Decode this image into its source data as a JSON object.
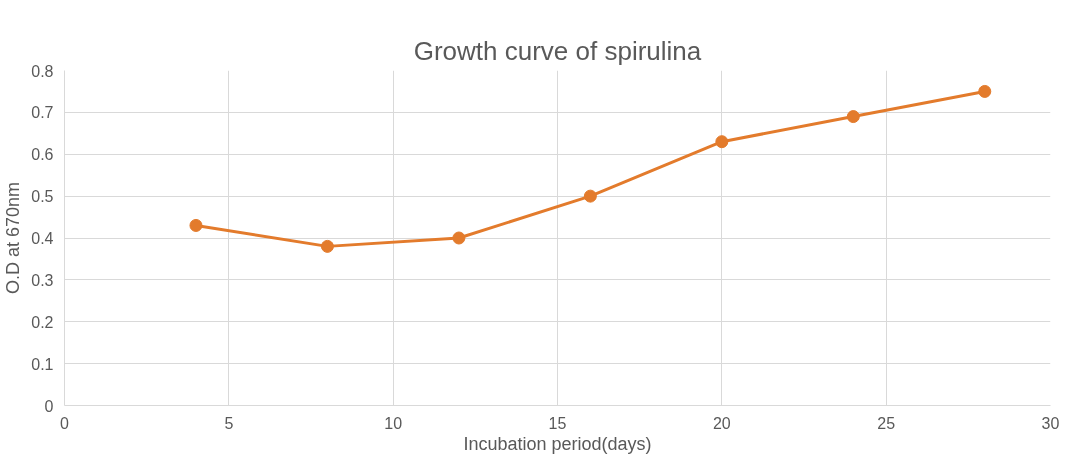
{
  "chart_data": {
    "type": "line",
    "title": "Growth curve of spirulina",
    "xlabel": "Incubation period(days)",
    "ylabel": "O.D at 670nm",
    "x": [
      4,
      8,
      12,
      16,
      20,
      24,
      28
    ],
    "series": [
      {
        "color": "#e37b2c",
        "values": [
          0.43,
          0.38,
          0.4,
          0.5,
          0.63,
          0.69,
          0.75
        ]
      }
    ],
    "xlim": [
      0,
      30
    ],
    "xticks": [
      0,
      5,
      10,
      15,
      20,
      25,
      30
    ],
    "ylim": [
      0,
      0.8
    ],
    "yticks": [
      0,
      0.1,
      0.2,
      0.3,
      0.4,
      0.5,
      0.6,
      0.7,
      0.8
    ],
    "grid": true,
    "marker": "circle",
    "line_style": "solid"
  }
}
